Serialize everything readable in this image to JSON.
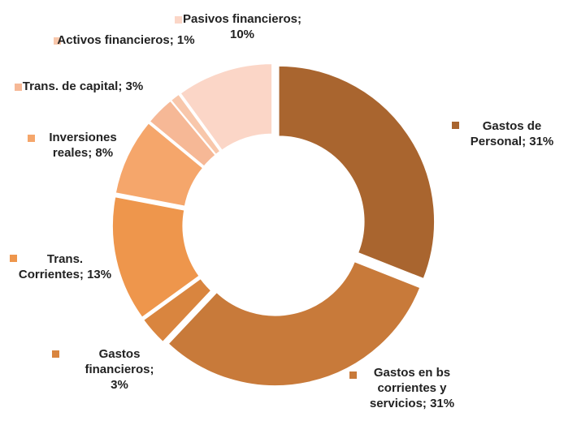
{
  "chart_data": {
    "type": "donut",
    "values": [
      31,
      31,
      3,
      13,
      8,
      3,
      1,
      10
    ],
    "value_labels": [
      "Gastos de Personal; 31%",
      "Gastos en bs corrientes y servicios; 31%",
      "Gastos financieros; 3%",
      "Trans. Corrientes; 13%",
      "Inversiones reales; 8%",
      "Trans. de capital; 3%",
      "Activos financieros; 1%",
      "Pasivos financieros; 10%"
    ],
    "colors": [
      "#a9652f",
      "#c87a3a",
      "#d9853f",
      "#ee964c",
      "#f5a66b",
      "#f6b896",
      "#f8c7ab",
      "#fbd6c7"
    ]
  }
}
